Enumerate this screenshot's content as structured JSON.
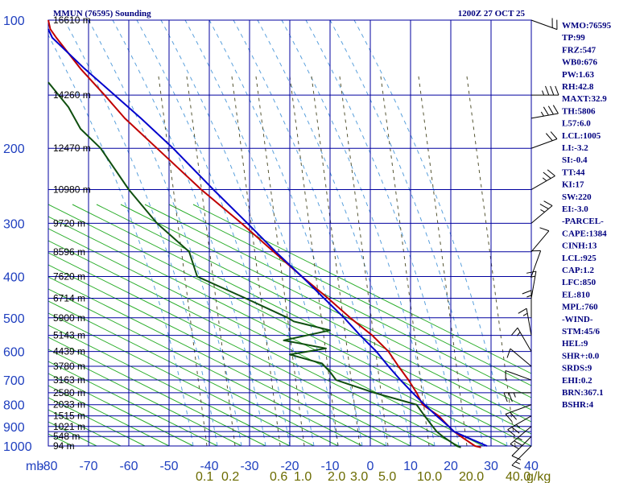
{
  "header": {
    "station_title": "MMUN (76595) Sounding",
    "time_title": "1200Z 27 OCT 25"
  },
  "indices": [
    "WMO:76595",
    "TP:99",
    "FRZ:547",
    "WB0:676",
    "PW:1.63",
    "RH:42.8",
    "MAXT:32.9",
    "TH:5806",
    "L57:6.0",
    "LCL:1005",
    "LI:-3.2",
    "SI:-0.4",
    "TT:44",
    "KI:17",
    "SW:220",
    "EI:-3.0",
    "-PARCEL-",
    "CAPE:1384",
    "CINH:13",
    "LCL:925",
    "CAP:1.2",
    "LFC:850",
    "EL:810",
    "MPL:760",
    "-WIND-",
    "STM:45/6",
    "HEL:9",
    "SHR+:0.0",
    "SRDS:9",
    "EHI:0.2",
    "BRN:367.1",
    "BSHR:4"
  ],
  "colors": {
    "temperature": "#c00000",
    "dewpoint": "#0f4f0f",
    "parcel": "#0000cc",
    "isobar": "#00009f",
    "dry_adiabat": "#22aa22",
    "moist_adiabat": "#5aa0dc",
    "mixing_ratio": "#555533"
  },
  "chart_data": {
    "type": "line",
    "axis_unit_label": "mb",
    "pressure_ticks": [
      {
        "p": 100,
        "label": "100"
      },
      {
        "p": 200,
        "label": "200"
      },
      {
        "p": 300,
        "label": "300"
      },
      {
        "p": 400,
        "label": "400"
      },
      {
        "p": 500,
        "label": "500"
      },
      {
        "p": 600,
        "label": "600"
      },
      {
        "p": 700,
        "label": "700"
      },
      {
        "p": 800,
        "label": "800"
      },
      {
        "p": 900,
        "label": "900"
      },
      {
        "p": 1000,
        "label": "1000"
      }
    ],
    "isobars_mb": [
      100,
      150,
      200,
      250,
      300,
      350,
      400,
      450,
      500,
      550,
      600,
      650,
      700,
      750,
      800,
      850,
      900,
      925,
      950,
      1000
    ],
    "temperature_ticks": [
      {
        "t": -80,
        "label": "-80"
      },
      {
        "t": -70,
        "label": "-70"
      },
      {
        "t": -60,
        "label": "-60"
      },
      {
        "t": -50,
        "label": "-50"
      },
      {
        "t": -40,
        "label": "-40"
      },
      {
        "t": -30,
        "label": "-30"
      },
      {
        "t": -20,
        "label": "-20"
      },
      {
        "t": -10,
        "label": "-10"
      },
      {
        "t": 0,
        "label": "0"
      },
      {
        "t": 10,
        "label": "10"
      },
      {
        "t": 20,
        "label": "20"
      },
      {
        "t": 30,
        "label": "30"
      },
      {
        "t": 40,
        "label": "40"
      }
    ],
    "t_range": [
      -80,
      40
    ],
    "p_range": [
      100,
      1000
    ],
    "height_labels": [
      {
        "p": 100,
        "label": "16610 m"
      },
      {
        "p": 150,
        "label": "14260 m"
      },
      {
        "p": 200,
        "label": "12470 m"
      },
      {
        "p": 250,
        "label": "10980 m"
      },
      {
        "p": 300,
        "label": "9720 m"
      },
      {
        "p": 350,
        "label": "8596 m"
      },
      {
        "p": 400,
        "label": "7620 m"
      },
      {
        "p": 450,
        "label": "6714 m"
      },
      {
        "p": 500,
        "label": "5900 m"
      },
      {
        "p": 550,
        "label": "5143 m"
      },
      {
        "p": 600,
        "label": "4439 m"
      },
      {
        "p": 650,
        "label": "3780 m"
      },
      {
        "p": 700,
        "label": "3163 m"
      },
      {
        "p": 750,
        "label": "2580 m"
      },
      {
        "p": 800,
        "label": "2033 m"
      },
      {
        "p": 850,
        "label": "1515 m"
      },
      {
        "p": 900,
        "label": "1021 m"
      },
      {
        "p": 950,
        "label": "548 m"
      },
      {
        "p": 1000,
        "label": "94 m"
      }
    ],
    "mixing_ratio_labels": [
      "0.1",
      "0.2",
      "0.6",
      "1.0",
      "2.0",
      "3.0",
      "5.0",
      "10.0",
      "20.0",
      "40.0"
    ],
    "mixing_ratio_unit": "g/kg",
    "mixing_ratio_values": [
      0.1,
      0.2,
      0.6,
      1.0,
      2.0,
      3.0,
      5.0,
      10.0,
      20.0,
      40.0
    ],
    "series": [
      {
        "name": "",
        "role": "temperature",
        "points": [
          [
            1008,
            27.5
          ],
          [
            1000,
            26.0
          ],
          [
            950,
            22.5
          ],
          [
            925,
            20.8
          ],
          [
            900,
            19.5
          ],
          [
            850,
            17.0
          ],
          [
            800,
            13.0
          ],
          [
            750,
            11.5
          ],
          [
            700,
            9.5
          ],
          [
            650,
            7.0
          ],
          [
            600,
            4.5
          ],
          [
            550,
            0.5
          ],
          [
            500,
            -5.0
          ],
          [
            450,
            -10.5
          ],
          [
            400,
            -17.0
          ],
          [
            350,
            -24.0
          ],
          [
            300,
            -32.0
          ],
          [
            250,
            -42.0
          ],
          [
            200,
            -53.0
          ],
          [
            170,
            -61.0
          ],
          [
            150,
            -66.0
          ],
          [
            130,
            -72.0
          ],
          [
            110,
            -78.0
          ],
          [
            105,
            -79.5
          ],
          [
            100,
            -80.0
          ]
        ]
      },
      {
        "name": "",
        "role": "dewpoint",
        "points": [
          [
            1008,
            22.5
          ],
          [
            1000,
            21.5
          ],
          [
            950,
            18.0
          ],
          [
            925,
            16.5
          ],
          [
            900,
            15.5
          ],
          [
            850,
            13.5
          ],
          [
            800,
            11.5
          ],
          [
            750,
            1.0
          ],
          [
            700,
            -8.5
          ],
          [
            670,
            -10.0
          ],
          [
            640,
            -12.0
          ],
          [
            610,
            -20.0
          ],
          [
            590,
            -11.0
          ],
          [
            565,
            -21.5
          ],
          [
            535,
            -10.0
          ],
          [
            510,
            -19.0
          ],
          [
            500,
            -20.5
          ],
          [
            450,
            -31.0
          ],
          [
            400,
            -43.0
          ],
          [
            350,
            -45.0
          ],
          [
            300,
            -53.0
          ],
          [
            250,
            -60.0
          ],
          [
            200,
            -67.0
          ],
          [
            180,
            -72.0
          ],
          [
            160,
            -75.0
          ],
          [
            140,
            -80.0
          ]
        ]
      },
      {
        "name": "",
        "role": "parcel",
        "points": [
          [
            1000,
            29.0
          ],
          [
            950,
            23.5
          ],
          [
            925,
            20.8
          ],
          [
            900,
            19.5
          ],
          [
            850,
            16.5
          ],
          [
            800,
            13.5
          ],
          [
            750,
            10.5
          ],
          [
            700,
            7.5
          ],
          [
            650,
            4.5
          ],
          [
            600,
            1.5
          ],
          [
            550,
            -2.5
          ],
          [
            500,
            -6.5
          ],
          [
            450,
            -11.5
          ],
          [
            400,
            -17.0
          ],
          [
            350,
            -23.5
          ],
          [
            300,
            -30.5
          ],
          [
            250,
            -39.0
          ],
          [
            200,
            -49.0
          ],
          [
            170,
            -57.0
          ],
          [
            150,
            -63.5
          ],
          [
            130,
            -71.0
          ],
          [
            110,
            -79.0
          ],
          [
            105,
            -80.0
          ]
        ]
      }
    ],
    "wind_barbs": [
      {
        "p": 100,
        "dir": 290,
        "kt": 20
      },
      {
        "p": 150,
        "dir": 270,
        "kt": 25
      },
      {
        "p": 170,
        "dir": 260,
        "kt": 25
      },
      {
        "p": 200,
        "dir": 250,
        "kt": 20
      },
      {
        "p": 250,
        "dir": 240,
        "kt": 15
      },
      {
        "p": 300,
        "dir": 230,
        "kt": 15
      },
      {
        "p": 350,
        "dir": 220,
        "kt": 10
      },
      {
        "p": 400,
        "dir": 200,
        "kt": 10
      },
      {
        "p": 450,
        "dir": 190,
        "kt": 5
      },
      {
        "p": 500,
        "dir": 180,
        "kt": 5
      },
      {
        "p": 550,
        "dir": 170,
        "kt": 5
      },
      {
        "p": 600,
        "dir": 150,
        "kt": 5
      },
      {
        "p": 650,
        "dir": 130,
        "kt": 10
      },
      {
        "p": 700,
        "dir": 110,
        "kt": 10
      },
      {
        "p": 750,
        "dir": 90,
        "kt": 15
      },
      {
        "p": 800,
        "dir": 70,
        "kt": 20
      },
      {
        "p": 850,
        "dir": 60,
        "kt": 15
      },
      {
        "p": 900,
        "dir": 50,
        "kt": 15
      },
      {
        "p": 950,
        "dir": 45,
        "kt": 10
      },
      {
        "p": 1000,
        "dir": 45,
        "kt": 5
      }
    ]
  }
}
